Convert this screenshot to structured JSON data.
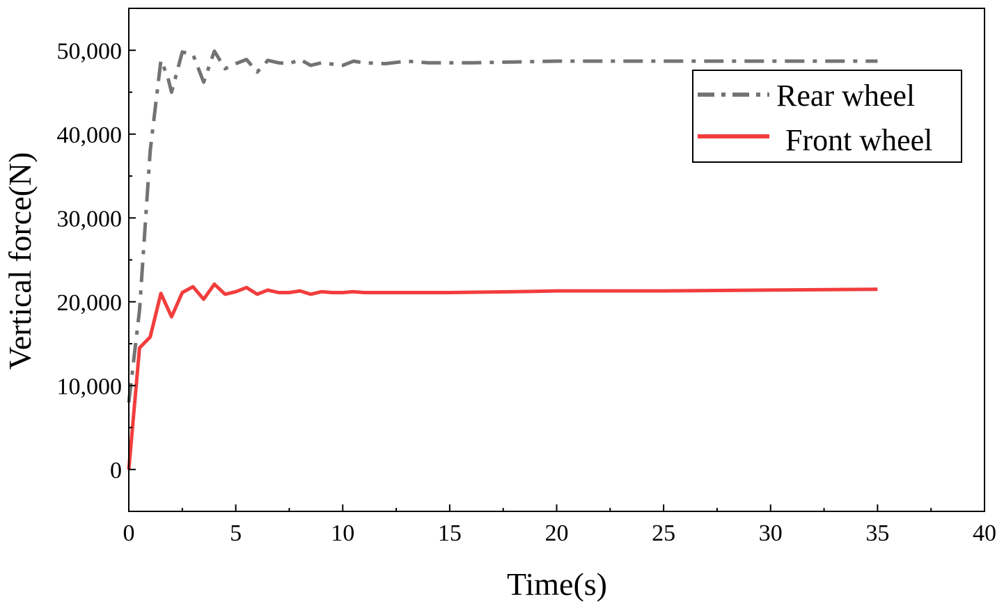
{
  "chart_data": {
    "type": "line",
    "title": "",
    "xlabel": "Time(s)",
    "ylabel": "Vertical force(N)",
    "xlim": [
      0,
      40
    ],
    "ylim": [
      -5000,
      55000
    ],
    "x_ticks": [
      0,
      5,
      10,
      15,
      20,
      25,
      30,
      35,
      40
    ],
    "x_tick_labels": [
      "0",
      "5",
      "10",
      "15",
      "20",
      "25",
      "30",
      "35",
      "40"
    ],
    "y_ticks": [
      0,
      10000,
      20000,
      30000,
      40000,
      50000
    ],
    "y_tick_labels": [
      "0",
      "10,000",
      "20,000",
      "30,000",
      "40,000",
      "50,000"
    ],
    "grid": false,
    "legend_position": "top-right",
    "series": [
      {
        "name": "Rear wheel",
        "color": "#737373",
        "style": "dash-dot",
        "x": [
          0,
          0.5,
          1,
          1.5,
          1.8,
          2,
          2.5,
          3,
          3.5,
          4,
          4.5,
          5,
          5.5,
          6,
          6.5,
          7,
          7.5,
          8,
          8.5,
          9,
          10,
          10.5,
          11,
          12,
          13,
          14,
          15,
          16,
          18,
          20,
          25,
          30,
          35
        ],
        "y": [
          8000,
          19000,
          38000,
          48800,
          47000,
          45000,
          49800,
          49500,
          46200,
          49900,
          47800,
          48400,
          48900,
          47400,
          48800,
          48500,
          48400,
          48900,
          48200,
          48500,
          48200,
          48700,
          48500,
          48400,
          48700,
          48500,
          48500,
          48500,
          48600,
          48700,
          48700,
          48700,
          48700
        ]
      },
      {
        "name": "Front wheel",
        "color": "#f23d3d",
        "style": "solid",
        "x": [
          0,
          0.5,
          1,
          1.5,
          2,
          2.5,
          3,
          3.5,
          4,
          4.5,
          5,
          5.5,
          6,
          6.5,
          7,
          7.5,
          8,
          8.5,
          9,
          9.5,
          10,
          10.5,
          11,
          12,
          13,
          15,
          18,
          20,
          25,
          30,
          35
        ],
        "y": [
          0,
          14500,
          15800,
          21000,
          18200,
          21100,
          21800,
          20300,
          22100,
          20900,
          21200,
          21700,
          20900,
          21400,
          21100,
          21100,
          21300,
          20900,
          21200,
          21100,
          21100,
          21200,
          21100,
          21100,
          21100,
          21100,
          21200,
          21300,
          21300,
          21400,
          21500
        ]
      }
    ]
  }
}
